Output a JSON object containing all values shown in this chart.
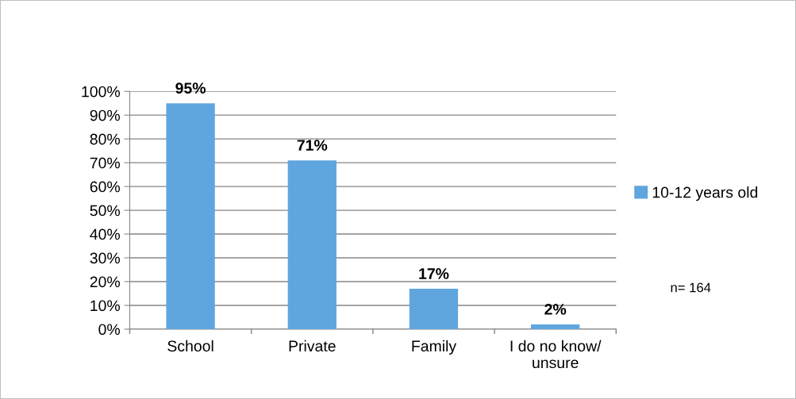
{
  "chart_data": {
    "type": "bar",
    "categories": [
      "School",
      "Private",
      "Family",
      "I do no know/\nunsure"
    ],
    "series": [
      {
        "name": "10-12 years old",
        "color": "#5fa5de",
        "values": [
          95,
          71,
          17,
          2
        ],
        "value_labels": [
          "95%",
          "71%",
          "17%",
          "2%"
        ]
      }
    ],
    "ylim": [
      0,
      100
    ],
    "yticks": [
      {
        "value": 0,
        "label": "0%"
      },
      {
        "value": 10,
        "label": "10%"
      },
      {
        "value": 20,
        "label": "20%"
      },
      {
        "value": 30,
        "label": "30%"
      },
      {
        "value": 40,
        "label": "40%"
      },
      {
        "value": 50,
        "label": "50%"
      },
      {
        "value": 60,
        "label": "60%"
      },
      {
        "value": 70,
        "label": "70%"
      },
      {
        "value": 80,
        "label": "80%"
      },
      {
        "value": 90,
        "label": "90%"
      },
      {
        "value": 100,
        "label": "100%"
      }
    ],
    "grid": "y",
    "legend": "right",
    "annotations": [
      "n= 164"
    ]
  }
}
